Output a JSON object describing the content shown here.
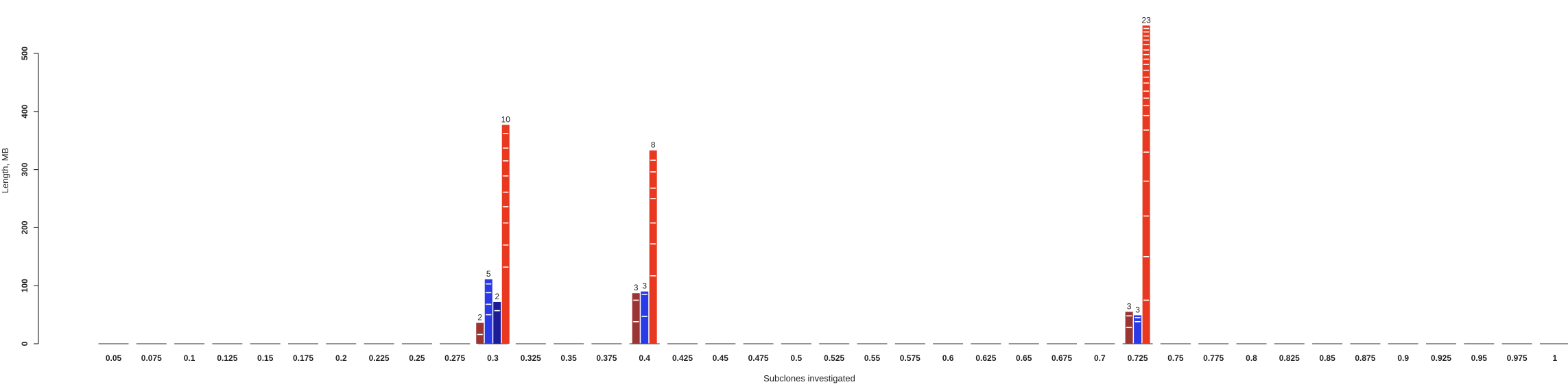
{
  "chart_data": {
    "type": "bar",
    "xlabel": "Subclones investigated",
    "ylabel": "Length, MB",
    "ylim": [
      0,
      580
    ],
    "y_ticks": [
      "0",
      "100",
      "200",
      "300",
      "400",
      "500"
    ],
    "categories": [
      "0.05",
      "0.075",
      "0.1",
      "0.125",
      "0.15",
      "0.175",
      "0.2",
      "0.225",
      "0.25",
      "0.275",
      "0.3",
      "0.325",
      "0.35",
      "0.375",
      "0.4",
      "0.425",
      "0.45",
      "0.475",
      "0.5",
      "0.525",
      "0.55",
      "0.575",
      "0.6",
      "0.625",
      "0.65",
      "0.675",
      "0.7",
      "0.725",
      "0.75",
      "0.775",
      "0.8",
      "0.825",
      "0.85",
      "0.875",
      "0.9",
      "0.925",
      "0.95",
      "0.975",
      "1"
    ],
    "colors": {
      "dark_red": "#9a3534",
      "blue": "#2a3ae6",
      "navy": "#1c1d96",
      "red": "#e8381f",
      "axis": "#333333",
      "separator": "#ffffff"
    },
    "groups": [
      {
        "category": "0.3",
        "bars": [
          {
            "color": "dark_red",
            "label": "2",
            "segments": [
              16,
              20
            ]
          },
          {
            "color": "blue",
            "label": "5",
            "segments": [
              50,
              18,
              20,
              15,
              8
            ]
          },
          {
            "color": "navy",
            "label": "2",
            "segments": [
              57,
              15
            ]
          },
          {
            "color": "red",
            "label": "10",
            "segments": [
              132,
              38,
              38,
              28,
              25,
              28,
              26,
              22,
              25,
              15
            ]
          }
        ]
      },
      {
        "category": "0.4",
        "bars": [
          {
            "color": "dark_red",
            "label": "3",
            "segments": [
              38,
              37,
              12
            ]
          },
          {
            "color": "blue",
            "label": "3",
            "segments": [
              47,
              38,
              5
            ]
          },
          {
            "color": "red",
            "label": "8",
            "segments": [
              117,
              55,
              36,
              42,
              18,
              28,
              20,
              17
            ]
          }
        ]
      },
      {
        "category": "0.725",
        "bars": [
          {
            "color": "dark_red",
            "label": "3",
            "segments": [
              28,
              20,
              7
            ]
          },
          {
            "color": "blue",
            "label": "3",
            "segments": [
              38,
              7,
              4
            ]
          },
          {
            "color": "red",
            "label": "23",
            "segments": [
              75,
              75,
              70,
              60,
              50,
              38,
              25,
              17,
              13,
              12,
              14,
              10,
              12,
              10,
              9,
              8,
              8,
              9,
              8,
              7,
              7,
              6,
              5
            ]
          }
        ]
      }
    ]
  }
}
